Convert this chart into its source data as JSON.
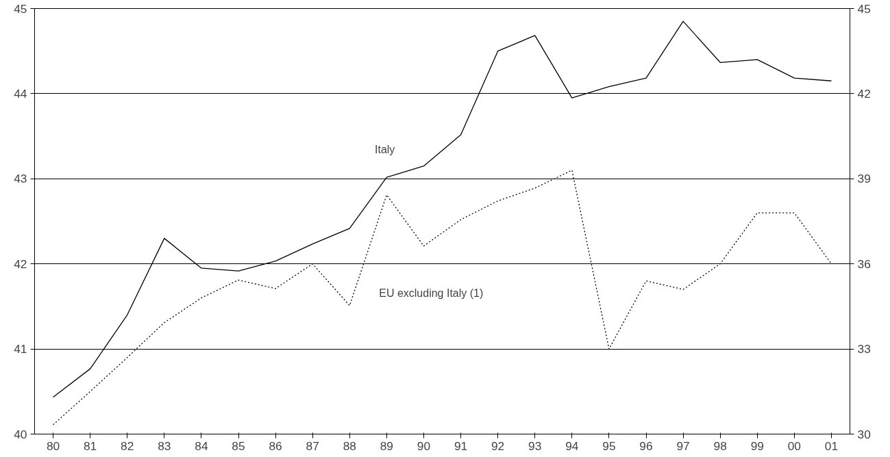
{
  "chart_data": {
    "type": "line",
    "categories": [
      "80",
      "81",
      "82",
      "83",
      "84",
      "85",
      "86",
      "87",
      "88",
      "89",
      "90",
      "91",
      "92",
      "93",
      "94",
      "95",
      "96",
      "97",
      "98",
      "99",
      "00",
      "01"
    ],
    "ylim": [
      40,
      45
    ],
    "yticks": [
      40,
      41,
      42,
      43,
      44,
      45
    ],
    "y2lim": [
      30,
      45
    ],
    "y2ticks": [
      30,
      33,
      36,
      39,
      42,
      45
    ],
    "grid": "y",
    "series": [
      {
        "name": "Italy",
        "color": "#000000",
        "line_style": "solid",
        "axis": "y2",
        "values": [
          31.3,
          32.3,
          34.2,
          36.9,
          35.85,
          35.75,
          36.1,
          36.7,
          37.25,
          39.05,
          39.45,
          40.55,
          43.5,
          44.05,
          41.85,
          42.25,
          42.55,
          44.55,
          43.1,
          43.2,
          42.55,
          42.45
        ]
      },
      {
        "name": "EU excluding Italy (1)",
        "color": "#000000",
        "line_style": "dotted",
        "axis": "y",
        "values": [
          40.11,
          40.5,
          40.9,
          41.31,
          41.6,
          41.81,
          41.71,
          42.0,
          41.51,
          42.81,
          42.21,
          42.52,
          42.74,
          42.89,
          43.1,
          41.0,
          41.8,
          41.7,
          42.0,
          42.6,
          42.6,
          42.0
        ]
      }
    ]
  }
}
